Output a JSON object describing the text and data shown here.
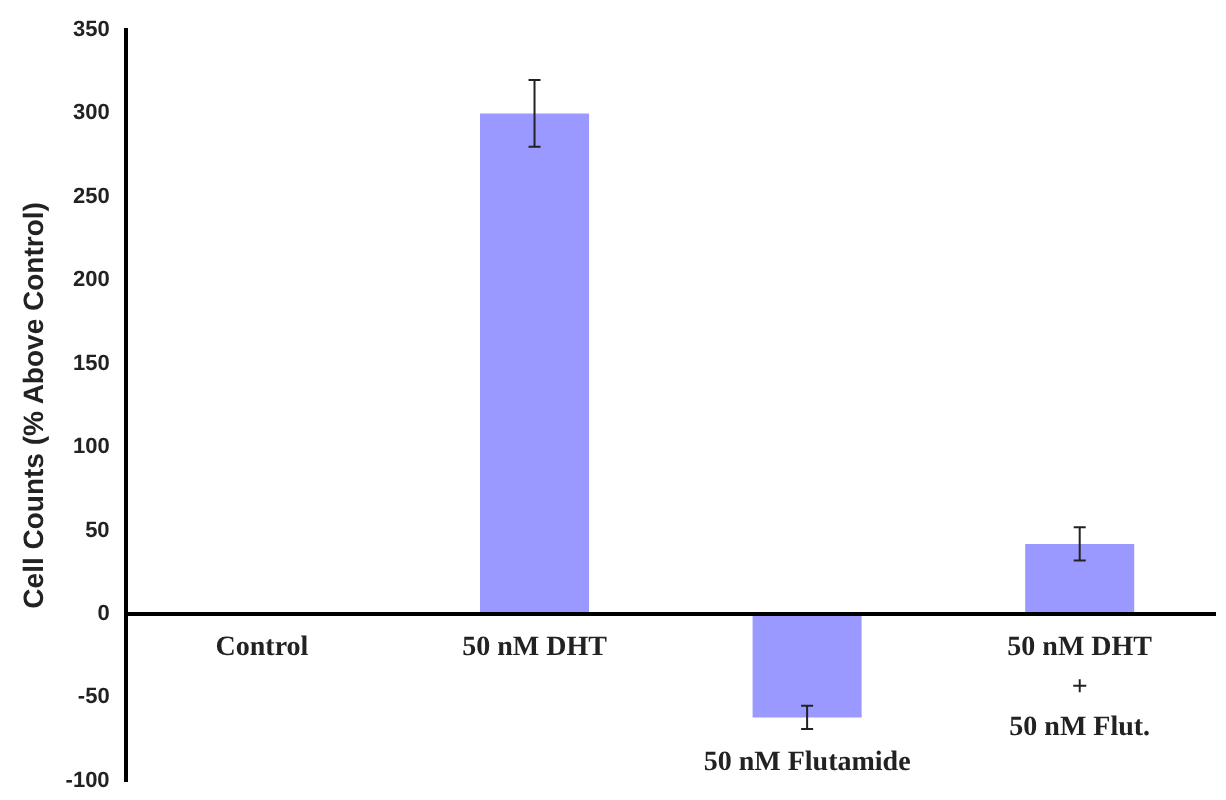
{
  "chart_data": {
    "type": "bar",
    "ylabel": "Cell Counts (% Above Control)",
    "categories": [
      "Control",
      "50 nM DHT",
      "50 nM Flutamide",
      "50 nM DHT\n+\n50 nM Flut."
    ],
    "values": [
      0,
      300,
      -62,
      42
    ],
    "errors": [
      null,
      20,
      7,
      10
    ],
    "color": "#9999ff",
    "ylim": [
      -100,
      350
    ],
    "yticks": [
      -100,
      -50,
      0,
      50,
      100,
      150,
      200,
      250,
      300,
      350
    ],
    "grid": false,
    "legend": false
  }
}
